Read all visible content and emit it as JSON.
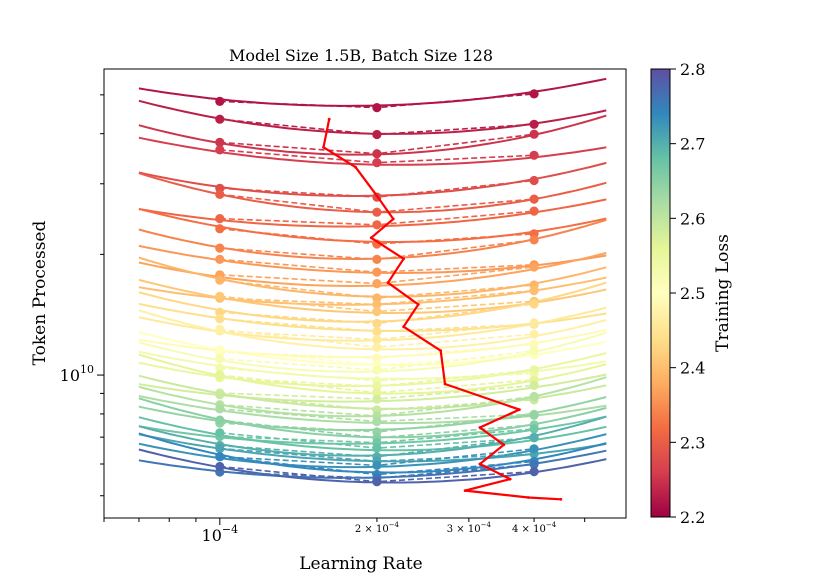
{
  "chart_data": {
    "type": "line",
    "title": "Model Size 1.5B, Batch Size 128",
    "xlabel": "Learning Rate",
    "ylabel": "Token Processed",
    "xscale": "log",
    "yscale": "log",
    "xlim": [
      6e-05,
      0.0006
    ],
    "ylim": [
      4400000000.0,
      58000000000.0
    ],
    "grid": false,
    "xticks": [
      {
        "value": 0.0001,
        "base": "10",
        "exp": "−4",
        "coef": ""
      },
      {
        "value": 0.0002,
        "base": "10",
        "exp": "−4",
        "coef": "2 × "
      },
      {
        "value": 0.0003,
        "base": "10",
        "exp": "−4",
        "coef": "3 × "
      },
      {
        "value": 0.0004,
        "base": "10",
        "exp": "−4",
        "coef": "4 × "
      }
    ],
    "yticks": [
      {
        "value": 10000000000.0,
        "base": "10",
        "exp": "10"
      }
    ],
    "sampled_lr": [
      0.0001,
      0.0002,
      0.0004
    ],
    "fit_curves": {
      "lr_min": 7e-05,
      "lr_max": 0.00055,
      "tokens": [
        47000000000.0,
        40000000000.0,
        35500000000.0,
        33500000000.0,
        28000000000.0,
        25500000000.0,
        23500000000.0,
        21500000000.0,
        19500000000.0,
        18000000000.0,
        16700000000.0,
        15700000000.0,
        15000000000.0,
        14300000000.0,
        13600000000.0,
        12900000000.0,
        12200000000.0,
        11600000000.0,
        11100000000.0,
        10600000000.0,
        10200000000.0,
        9800000000.0,
        9400000000.0,
        9000000000.0,
        8600000000.0,
        8250000000.0,
        7900000000.0,
        7600000000.0,
        7300000000.0,
        7000000000.0,
        6750000000.0,
        6500000000.0,
        6300000000.0,
        6100000000.0,
        5900000000.0,
        5720000000.0,
        5550000000.0,
        5400000000.0
      ],
      "loss": [
        2.22,
        2.23,
        2.25,
        2.26,
        2.28,
        2.3,
        2.31,
        2.32,
        2.34,
        2.36,
        2.37,
        2.39,
        2.4,
        2.41,
        2.43,
        2.44,
        2.46,
        2.47,
        2.49,
        2.5,
        2.52,
        2.53,
        2.55,
        2.56,
        2.58,
        2.59,
        2.61,
        2.62,
        2.64,
        2.65,
        2.67,
        2.68,
        2.7,
        2.71,
        2.73,
        2.74,
        2.76,
        2.78
      ]
    },
    "optimal_lr_path": {
      "color": "#ff0000",
      "points": [
        {
          "lr": 0.000162,
          "tokens": 43500000000.0
        },
        {
          "lr": 0.000158,
          "tokens": 37000000000.0
        },
        {
          "lr": 0.000182,
          "tokens": 33000000000.0
        },
        {
          "lr": 0.0002,
          "tokens": 28000000000.0
        },
        {
          "lr": 0.000215,
          "tokens": 24500000000.0
        },
        {
          "lr": 0.000195,
          "tokens": 22000000000.0
        },
        {
          "lr": 0.000225,
          "tokens": 19500000000.0
        },
        {
          "lr": 0.00021,
          "tokens": 17000000000.0
        },
        {
          "lr": 0.00024,
          "tokens": 15000000000.0
        },
        {
          "lr": 0.000225,
          "tokens": 13200000000.0
        },
        {
          "lr": 0.000265,
          "tokens": 11500000000.0
        },
        {
          "lr": 0.00027,
          "tokens": 9500000000.0
        },
        {
          "lr": 0.000375,
          "tokens": 8200000000.0
        },
        {
          "lr": 0.000315,
          "tokens": 7400000000.0
        },
        {
          "lr": 0.00035,
          "tokens": 6700000000.0
        },
        {
          "lr": 0.000315,
          "tokens": 6000000000.0
        },
        {
          "lr": 0.00036,
          "tokens": 5500000000.0
        },
        {
          "lr": 0.000295,
          "tokens": 5150000000.0
        },
        {
          "lr": 0.00039,
          "tokens": 4950000000.0
        },
        {
          "lr": 0.00045,
          "tokens": 4900000000.0
        }
      ]
    },
    "colorbar": {
      "label": "Training Loss",
      "min": 2.2,
      "max": 2.8,
      "ticks": [
        "2.2",
        "2.3",
        "2.4",
        "2.5",
        "2.6",
        "2.7",
        "2.8"
      ],
      "colormap": "Spectral",
      "stops": [
        "#9e0142",
        "#d53e4f",
        "#f46d43",
        "#fdae61",
        "#fee08b",
        "#ffffbf",
        "#e6f598",
        "#abdda4",
        "#66c2a5",
        "#3288bd",
        "#5e4fa2"
      ]
    }
  }
}
